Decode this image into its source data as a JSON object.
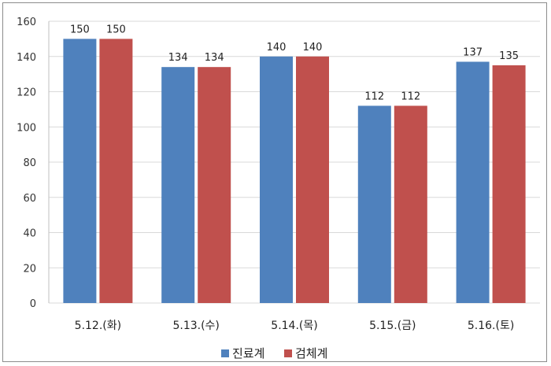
{
  "chart_data": {
    "type": "bar",
    "categories": [
      "5.12.(화)",
      "5.13.(수)",
      "5.14.(목)",
      "5.15.(금)",
      "5.16.(토)"
    ],
    "series": [
      {
        "name": "진료계",
        "values": [
          150,
          134,
          140,
          112,
          137
        ],
        "color": "#4f81bd"
      },
      {
        "name": "검체계",
        "values": [
          150,
          134,
          140,
          112,
          135
        ],
        "color": "#c0504d"
      }
    ],
    "title": "",
    "xlabel": "",
    "ylabel": "",
    "ylim": [
      0,
      160
    ],
    "yticks": [
      0,
      20,
      40,
      60,
      80,
      100,
      120,
      140,
      160
    ],
    "grid": true,
    "legend_position": "bottom",
    "data_labels": true
  }
}
